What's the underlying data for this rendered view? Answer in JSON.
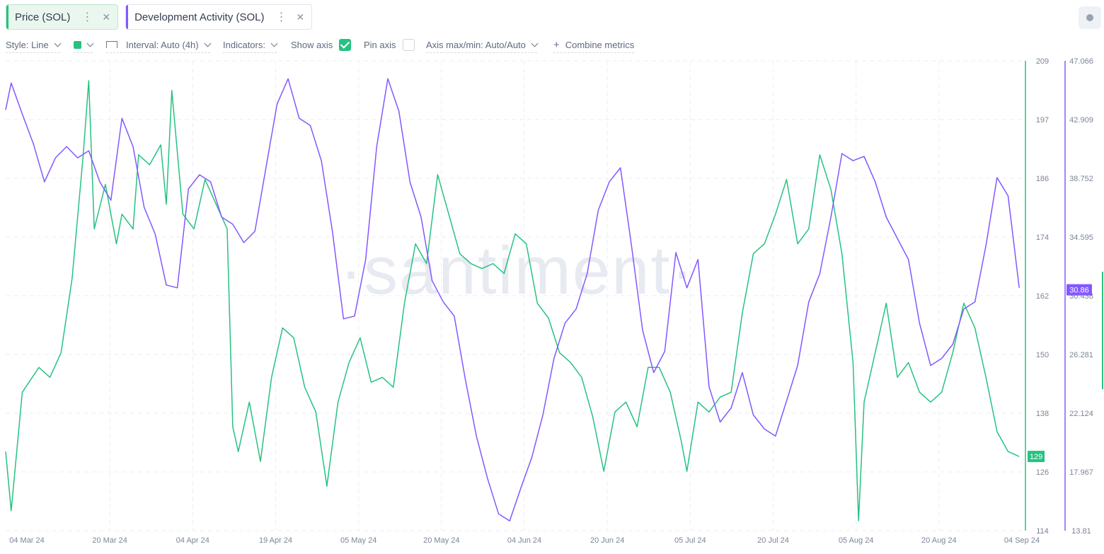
{
  "tabs": [
    {
      "label": "Price (SOL)",
      "color": "#26c281",
      "active": true,
      "menu": "⋮",
      "close": "✕"
    },
    {
      "label": "Development Activity (SOL)",
      "color": "#8358ff",
      "active": false,
      "menu": "⋮",
      "close": "✕"
    }
  ],
  "toolbar": {
    "style": "Style: Line",
    "swatch_color": "#26c281",
    "interval": "Interval: Auto (4h)",
    "indicators": "Indicators:",
    "show_axis": "Show axis",
    "show_axis_checked": true,
    "pin_axis": "Pin axis",
    "pin_axis_checked": false,
    "axis_maxmin": "Axis max/min: Auto/Auto",
    "combine": "Combine metrics",
    "combine_icon": "+"
  },
  "watermark": "·santiment·",
  "chart_data": {
    "type": "line",
    "x_ticks": [
      "04 Mar 24",
      "20 Mar 24",
      "04 Apr 24",
      "19 Apr 24",
      "05 May 24",
      "20 May 24",
      "04 Jun 24",
      "20 Jun 24",
      "05 Jul 24",
      "20 Jul 24",
      "05 Aug 24",
      "20 Aug 24",
      "04 Sep 24"
    ],
    "x_range": [
      "2024-03-04",
      "2024-09-04"
    ],
    "price_axis": {
      "ticks": [
        "209",
        "197",
        "186",
        "174",
        "162",
        "150",
        "138",
        "126",
        "114"
      ],
      "min": 114,
      "max": 209,
      "current": "129",
      "color": "#26c281"
    },
    "devact_axis": {
      "ticks": [
        "47.066",
        "42.909",
        "38.752",
        "34.595",
        "30.438",
        "26.281",
        "22.124",
        "17.967",
        "13.81"
      ],
      "min": 13.81,
      "max": 47.066,
      "current": "30.86",
      "color": "#8358ff"
    },
    "series": [
      {
        "name": "Price (SOL)",
        "axis": "price",
        "color": "#26c281",
        "points": [
          [
            "2024-03-04",
            130
          ],
          [
            "2024-03-05",
            118
          ],
          [
            "2024-03-07",
            142
          ],
          [
            "2024-03-10",
            147
          ],
          [
            "2024-03-12",
            145
          ],
          [
            "2024-03-14",
            150
          ],
          [
            "2024-03-16",
            165
          ],
          [
            "2024-03-18",
            190
          ],
          [
            "2024-03-19",
            205
          ],
          [
            "2024-03-20",
            175
          ],
          [
            "2024-03-22",
            184
          ],
          [
            "2024-03-24",
            172
          ],
          [
            "2024-03-25",
            178
          ],
          [
            "2024-03-27",
            175
          ],
          [
            "2024-03-28",
            190
          ],
          [
            "2024-03-30",
            188
          ],
          [
            "2024-04-01",
            192
          ],
          [
            "2024-04-02",
            180
          ],
          [
            "2024-04-03",
            203
          ],
          [
            "2024-04-05",
            178
          ],
          [
            "2024-04-07",
            175
          ],
          [
            "2024-04-09",
            185
          ],
          [
            "2024-04-11",
            180
          ],
          [
            "2024-04-13",
            175
          ],
          [
            "2024-04-14",
            135
          ],
          [
            "2024-04-15",
            130
          ],
          [
            "2024-04-17",
            140
          ],
          [
            "2024-04-19",
            128
          ],
          [
            "2024-04-21",
            145
          ],
          [
            "2024-04-23",
            155
          ],
          [
            "2024-04-25",
            153
          ],
          [
            "2024-04-27",
            143
          ],
          [
            "2024-04-29",
            138
          ],
          [
            "2024-05-01",
            123
          ],
          [
            "2024-05-03",
            140
          ],
          [
            "2024-05-05",
            148
          ],
          [
            "2024-05-07",
            153
          ],
          [
            "2024-05-09",
            144
          ],
          [
            "2024-05-11",
            145
          ],
          [
            "2024-05-13",
            143
          ],
          [
            "2024-05-15",
            160
          ],
          [
            "2024-05-17",
            172
          ],
          [
            "2024-05-19",
            168
          ],
          [
            "2024-05-21",
            186
          ],
          [
            "2024-05-23",
            178
          ],
          [
            "2024-05-25",
            170
          ],
          [
            "2024-05-27",
            168
          ],
          [
            "2024-05-29",
            167
          ],
          [
            "2024-05-31",
            168
          ],
          [
            "2024-06-02",
            166
          ],
          [
            "2024-06-04",
            174
          ],
          [
            "2024-06-06",
            172
          ],
          [
            "2024-06-08",
            160
          ],
          [
            "2024-06-10",
            157
          ],
          [
            "2024-06-12",
            150
          ],
          [
            "2024-06-14",
            148
          ],
          [
            "2024-06-16",
            145
          ],
          [
            "2024-06-18",
            137
          ],
          [
            "2024-06-20",
            126
          ],
          [
            "2024-06-22",
            138
          ],
          [
            "2024-06-24",
            140
          ],
          [
            "2024-06-26",
            135
          ],
          [
            "2024-06-28",
            147
          ],
          [
            "2024-06-30",
            147
          ],
          [
            "2024-07-02",
            142
          ],
          [
            "2024-07-04",
            132
          ],
          [
            "2024-07-05",
            126
          ],
          [
            "2024-07-07",
            140
          ],
          [
            "2024-07-09",
            138
          ],
          [
            "2024-07-11",
            141
          ],
          [
            "2024-07-13",
            142
          ],
          [
            "2024-07-15",
            158
          ],
          [
            "2024-07-17",
            170
          ],
          [
            "2024-07-19",
            172
          ],
          [
            "2024-07-21",
            178
          ],
          [
            "2024-07-23",
            185
          ],
          [
            "2024-07-25",
            172
          ],
          [
            "2024-07-27",
            175
          ],
          [
            "2024-07-29",
            190
          ],
          [
            "2024-07-31",
            183
          ],
          [
            "2024-08-02",
            170
          ],
          [
            "2024-08-04",
            148
          ],
          [
            "2024-08-05",
            116
          ],
          [
            "2024-08-06",
            140
          ],
          [
            "2024-08-08",
            150
          ],
          [
            "2024-08-10",
            160
          ],
          [
            "2024-08-12",
            145
          ],
          [
            "2024-08-14",
            148
          ],
          [
            "2024-08-16",
            142
          ],
          [
            "2024-08-18",
            140
          ],
          [
            "2024-08-20",
            142
          ],
          [
            "2024-08-22",
            150
          ],
          [
            "2024-08-24",
            160
          ],
          [
            "2024-08-26",
            155
          ],
          [
            "2024-08-28",
            145
          ],
          [
            "2024-08-30",
            134
          ],
          [
            "2024-09-01",
            130
          ],
          [
            "2024-09-03",
            129
          ]
        ]
      },
      {
        "name": "Development Activity (SOL)",
        "axis": "devact",
        "color": "#8358ff",
        "points": [
          [
            "2024-03-04",
            43.6
          ],
          [
            "2024-03-05",
            45.5
          ],
          [
            "2024-03-07",
            43.3
          ],
          [
            "2024-03-09",
            41.2
          ],
          [
            "2024-03-11",
            38.5
          ],
          [
            "2024-03-13",
            40.2
          ],
          [
            "2024-03-15",
            41.0
          ],
          [
            "2024-03-17",
            40.2
          ],
          [
            "2024-03-19",
            40.7
          ],
          [
            "2024-03-21",
            38.5
          ],
          [
            "2024-03-23",
            37.2
          ],
          [
            "2024-03-25",
            43.0
          ],
          [
            "2024-03-27",
            41.0
          ],
          [
            "2024-03-29",
            36.7
          ],
          [
            "2024-03-31",
            34.8
          ],
          [
            "2024-04-02",
            31.2
          ],
          [
            "2024-04-04",
            31.0
          ],
          [
            "2024-04-06",
            38.0
          ],
          [
            "2024-04-08",
            39.0
          ],
          [
            "2024-04-10",
            38.5
          ],
          [
            "2024-04-12",
            36.0
          ],
          [
            "2024-04-14",
            35.5
          ],
          [
            "2024-04-16",
            34.2
          ],
          [
            "2024-04-18",
            35.0
          ],
          [
            "2024-04-20",
            39.5
          ],
          [
            "2024-04-22",
            44.0
          ],
          [
            "2024-04-24",
            45.8
          ],
          [
            "2024-04-26",
            43.0
          ],
          [
            "2024-04-28",
            42.5
          ],
          [
            "2024-04-30",
            40.0
          ],
          [
            "2024-05-02",
            35.0
          ],
          [
            "2024-05-04",
            28.8
          ],
          [
            "2024-05-06",
            29.0
          ],
          [
            "2024-05-08",
            33.0
          ],
          [
            "2024-05-10",
            41.0
          ],
          [
            "2024-05-12",
            45.8
          ],
          [
            "2024-05-14",
            43.5
          ],
          [
            "2024-05-16",
            38.5
          ],
          [
            "2024-05-18",
            36.0
          ],
          [
            "2024-05-20",
            31.5
          ],
          [
            "2024-05-22",
            30.0
          ],
          [
            "2024-05-24",
            29.0
          ],
          [
            "2024-05-26",
            24.5
          ],
          [
            "2024-05-28",
            20.5
          ],
          [
            "2024-05-30",
            17.5
          ],
          [
            "2024-06-01",
            15.0
          ],
          [
            "2024-06-03",
            14.5
          ],
          [
            "2024-06-05",
            16.8
          ],
          [
            "2024-06-07",
            19.0
          ],
          [
            "2024-06-09",
            22.0
          ],
          [
            "2024-06-11",
            26.0
          ],
          [
            "2024-06-13",
            28.5
          ],
          [
            "2024-06-15",
            29.5
          ],
          [
            "2024-06-17",
            32.0
          ],
          [
            "2024-06-19",
            36.5
          ],
          [
            "2024-06-21",
            38.5
          ],
          [
            "2024-06-23",
            39.5
          ],
          [
            "2024-06-25",
            34.0
          ],
          [
            "2024-06-27",
            28.0
          ],
          [
            "2024-06-29",
            25.0
          ],
          [
            "2024-07-01",
            26.5
          ],
          [
            "2024-07-03",
            33.5
          ],
          [
            "2024-07-05",
            31.0
          ],
          [
            "2024-07-07",
            33.0
          ],
          [
            "2024-07-09",
            24.0
          ],
          [
            "2024-07-11",
            21.5
          ],
          [
            "2024-07-13",
            22.5
          ],
          [
            "2024-07-15",
            25.0
          ],
          [
            "2024-07-17",
            22.0
          ],
          [
            "2024-07-19",
            21.0
          ],
          [
            "2024-07-21",
            20.5
          ],
          [
            "2024-07-23",
            23.0
          ],
          [
            "2024-07-25",
            25.5
          ],
          [
            "2024-07-27",
            30.0
          ],
          [
            "2024-07-29",
            32.0
          ],
          [
            "2024-07-31",
            36.0
          ],
          [
            "2024-08-02",
            40.5
          ],
          [
            "2024-08-04",
            40.0
          ],
          [
            "2024-08-06",
            40.3
          ],
          [
            "2024-08-08",
            38.5
          ],
          [
            "2024-08-10",
            36.0
          ],
          [
            "2024-08-12",
            34.5
          ],
          [
            "2024-08-14",
            33.0
          ],
          [
            "2024-08-16",
            28.5
          ],
          [
            "2024-08-18",
            25.5
          ],
          [
            "2024-08-20",
            26.0
          ],
          [
            "2024-08-22",
            27.0
          ],
          [
            "2024-08-24",
            29.5
          ],
          [
            "2024-08-26",
            30.0
          ],
          [
            "2024-08-28",
            34.0
          ],
          [
            "2024-08-30",
            38.8
          ],
          [
            "2024-09-01",
            37.5
          ],
          [
            "2024-09-03",
            31.0
          ]
        ]
      }
    ]
  }
}
